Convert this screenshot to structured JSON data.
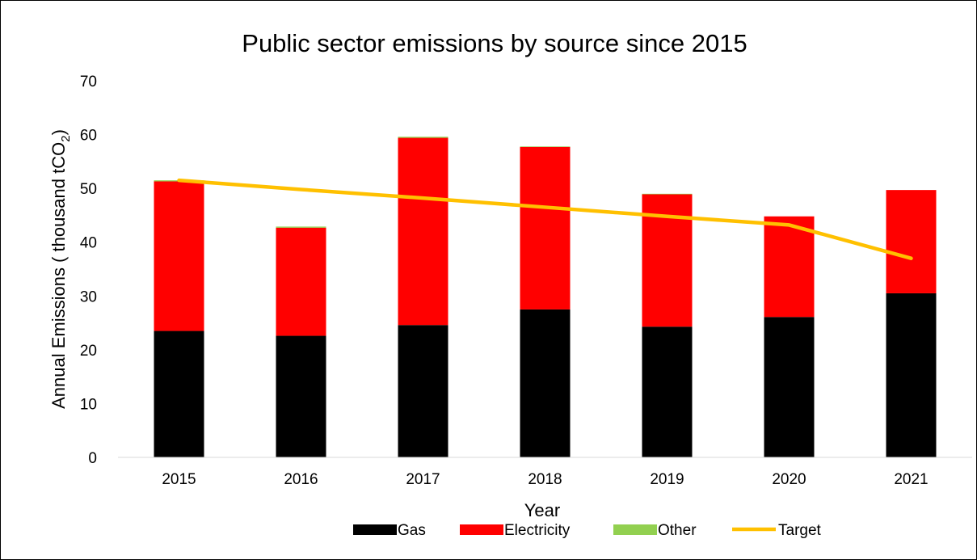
{
  "chart_data": {
    "type": "bar",
    "stacked": true,
    "title": "Public sector emissions by source since 2015",
    "xlabel": "Year",
    "ylabel": "Annual Emissions ( thousand tCO",
    "ylabel_subscript": "2",
    "ylabel_close": ")",
    "categories": [
      "2015",
      "2016",
      "2017",
      "2018",
      "2019",
      "2020",
      "2021"
    ],
    "ylim": [
      0,
      70
    ],
    "yticks": [
      0,
      10,
      20,
      30,
      40,
      50,
      60,
      70
    ],
    "grid": false,
    "legend_position": "bottom",
    "series": [
      {
        "name": "Gas",
        "kind": "bar",
        "color": "#000000",
        "values": [
          23.5,
          22.6,
          24.6,
          27.5,
          24.3,
          26.1,
          30.5
        ]
      },
      {
        "name": "Electricity",
        "kind": "bar",
        "color": "#ff0000",
        "values": [
          27.8,
          20.1,
          34.8,
          30.2,
          24.6,
          18.7,
          19.2
        ]
      },
      {
        "name": "Other",
        "kind": "bar",
        "color": "#92d050",
        "values": [
          0.2,
          0.2,
          0.2,
          0.1,
          0.1,
          0.0,
          0.0
        ]
      },
      {
        "name": "Target",
        "kind": "line",
        "color": "#ffc000",
        "values": [
          51.5,
          49.8,
          48.2,
          46.5,
          44.8,
          43.2,
          37.0
        ]
      }
    ]
  }
}
